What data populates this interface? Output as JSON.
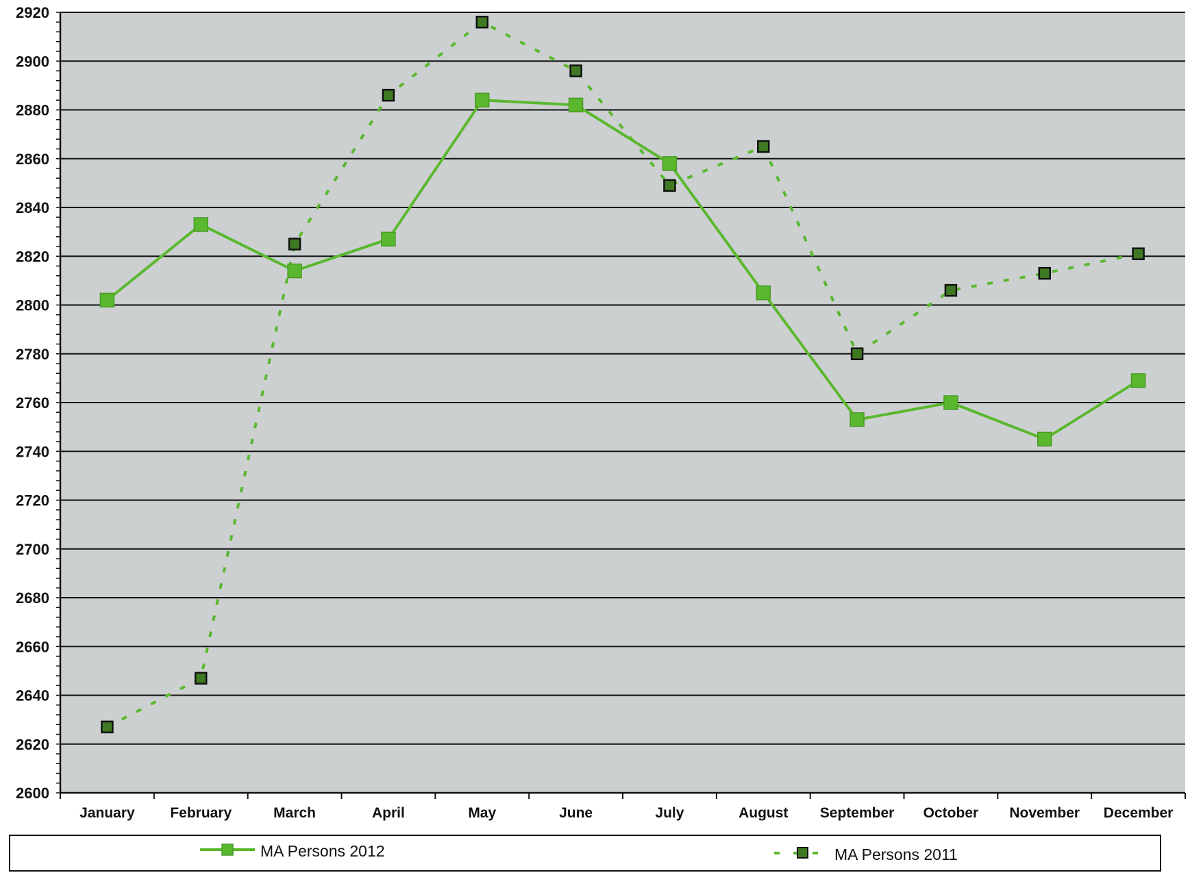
{
  "chart_data": {
    "type": "line",
    "categories": [
      "January",
      "February",
      "March",
      "April",
      "May",
      "June",
      "July",
      "August",
      "September",
      "October",
      "November",
      "December"
    ],
    "series": [
      {
        "name": "MA Persons 2012",
        "style": "solid",
        "values": [
          2802,
          2833,
          2814,
          2827,
          2884,
          2882,
          2858,
          2805,
          2753,
          2760,
          2745,
          2769
        ]
      },
      {
        "name": "MA Persons 2011",
        "style": "dashed",
        "values": [
          2627,
          2647,
          2825,
          2886,
          2916,
          2896,
          2849,
          2865,
          2780,
          2806,
          2813,
          2821
        ]
      }
    ],
    "ylim": [
      2600,
      2920
    ],
    "yticks": [
      "2920",
      "2900",
      "2880",
      "2860",
      "2840",
      "2820",
      "2800",
      "2780",
      "2760",
      "2740",
      "2720",
      "2700",
      "2680",
      "2660",
      "2640",
      "2620",
      "2600"
    ],
    "grid": true,
    "legend_position": "bottom",
    "title": "",
    "xlabel": "",
    "ylabel": ""
  },
  "colors": {
    "plot_background": "#cdd0d1",
    "grid_line": "#111111",
    "series_line": "#5ab82e",
    "marker_2012_fill": "#5ab82e",
    "marker_2011_fill": "#3f7a22",
    "marker_2011_stroke": "#111111"
  }
}
